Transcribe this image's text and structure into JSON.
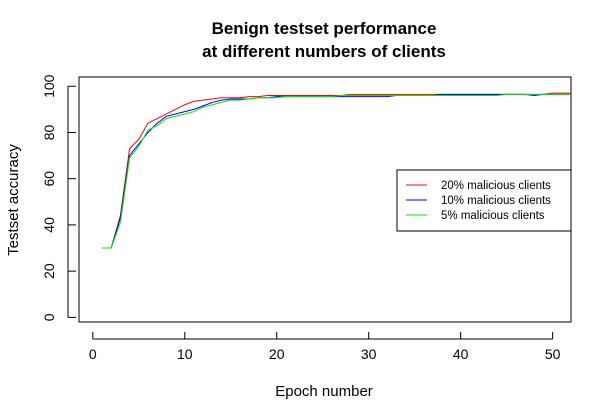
{
  "chart_data": {
    "type": "line",
    "title": [
      "Benign testset performance",
      "at different numbers of clients"
    ],
    "xlabel": "Epoch number",
    "ylabel": "Testset accuracy",
    "xlim": [
      -1.5,
      52
    ],
    "ylim": [
      -2,
      104
    ],
    "xticks": [
      0,
      10,
      20,
      30,
      40,
      50
    ],
    "yticks": [
      0,
      20,
      40,
      60,
      80,
      100
    ],
    "grid": false,
    "legend_position": "right",
    "x": [
      1,
      2,
      3,
      4,
      5,
      6,
      7,
      8,
      9,
      10,
      11,
      12,
      13,
      14,
      15,
      16,
      17,
      18,
      19,
      20,
      21,
      22,
      23,
      24,
      25,
      26,
      27,
      28,
      29,
      30,
      31,
      32,
      33,
      34,
      35,
      36,
      37,
      38,
      39,
      40,
      41,
      42,
      43,
      44,
      45,
      46,
      47,
      48,
      49,
      50,
      51,
      52
    ],
    "series": [
      {
        "name": "20% malicious clients",
        "color": "#ff0000",
        "values": [
          30,
          30,
          44,
          73,
          77,
          84,
          86,
          88,
          90,
          92,
          93.5,
          94,
          94.5,
          95,
          95,
          95,
          95.5,
          95.5,
          96,
          96,
          96,
          96,
          96,
          96,
          96,
          96,
          96,
          96.5,
          96.5,
          96.5,
          96.5,
          96.5,
          96.5,
          96.5,
          96.5,
          96.5,
          96.5,
          96.5,
          96.5,
          96.5,
          96.5,
          96.5,
          96.5,
          96.5,
          96.5,
          96.5,
          96.5,
          96.5,
          96.5,
          97,
          97,
          97
        ]
      },
      {
        "name": "10% malicious clients",
        "color": "#0000ff",
        "values": [
          30,
          30,
          43,
          70,
          75,
          80,
          84,
          87,
          88,
          89,
          90,
          91.5,
          93,
          94,
          94.5,
          94.5,
          94.5,
          95,
          95,
          95.5,
          95.5,
          95.5,
          95.5,
          95.5,
          95.5,
          95.5,
          95.5,
          95.5,
          95.5,
          95.5,
          95.5,
          95.5,
          96,
          96,
          96,
          96,
          96,
          96.5,
          96.5,
          96.5,
          96.5,
          96.5,
          96.5,
          96.5,
          96.5,
          96.5,
          96.5,
          96,
          96.5,
          96.5,
          96.5,
          96.5
        ]
      },
      {
        "name": "5% malicious clients",
        "color": "#00ee00",
        "values": [
          30,
          30,
          41,
          69,
          74,
          81,
          83,
          86,
          87,
          88,
          89,
          91,
          92,
          93,
          94,
          94,
          94.5,
          95,
          95,
          95,
          95.5,
          95.5,
          95.5,
          95.5,
          95.5,
          95.5,
          96,
          96,
          96,
          96,
          96,
          96,
          96,
          96,
          96,
          96,
          96,
          96,
          96,
          96,
          96,
          96,
          96,
          96,
          96.5,
          96.5,
          96.5,
          96.5,
          96.5,
          96.5,
          96.5,
          96.5
        ]
      }
    ]
  }
}
